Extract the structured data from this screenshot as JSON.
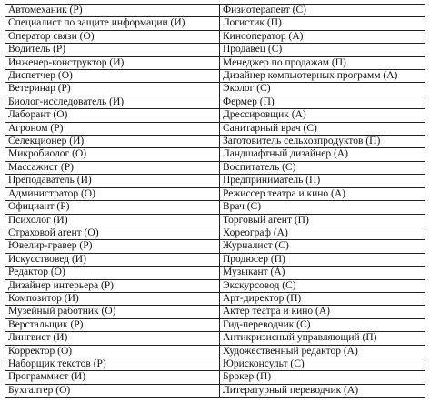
{
  "table": {
    "rows": [
      [
        "Автомеханик (Р)",
        "Физиотерапевт (С)"
      ],
      [
        "Специалист по защите информации (И)",
        "Логистик (П)"
      ],
      [
        "Оператор связи (О)",
        "Кинооператор (А)"
      ],
      [
        "Водитель (Р)",
        "Продавец (С)"
      ],
      [
        "Инженер-конструктор (И)",
        "Менеджер по продажам (П)"
      ],
      [
        "Диспетчер (О)",
        "Дизайнер компьютерных программ (А)"
      ],
      [
        "Ветеринар (Р)",
        "Эколог (С)"
      ],
      [
        "Биолог-исследователь (И)",
        "Фермер (П)"
      ],
      [
        "Лаборант (О)",
        "Дрессировщик (А)"
      ],
      [
        "Агроном (Р)",
        "Санитарный врач (С)"
      ],
      [
        "Селекционер (И)",
        "Заготовитель сельхозпродуктов (П)"
      ],
      [
        "Микробиолог (О)",
        "Ландшафтный дизайнер (А)"
      ],
      [
        "Массажист (Р)",
        "Воспитатель (С)"
      ],
      [
        "Преподаватель (И)",
        "Предприниматель (П)"
      ],
      [
        "Администратор (О)",
        "Режиссер театра и кино (А)"
      ],
      [
        "Официант (Р)",
        "Врач (С)"
      ],
      [
        "Психолог (И)",
        "Торговый агент (П)"
      ],
      [
        "Страховой агент (О)",
        "Хореограф (А)"
      ],
      [
        "Ювелир-гравер (Р)",
        "Журналист (С)"
      ],
      [
        "Искусствовед (И)",
        "Продюсер (П)"
      ],
      [
        "Редактор (О)",
        "Музыкант (А)"
      ],
      [
        "Дизайнер интерьера (Р)",
        "Экскурсовод (С)"
      ],
      [
        "Композитор (И)",
        "Арт-директор (П)"
      ],
      [
        "Музейный работник (О)",
        "Актер театра и кино (А)"
      ],
      [
        "Верстальщик (Р)",
        "Гид-переводчик (С)"
      ],
      [
        "Лингвист (И)",
        "Антикризисный управляющий (П)"
      ],
      [
        "Корректор (О)",
        "Художественный редактор (А)"
      ],
      [
        "Наборщик текстов (Р)",
        "Юрисконсульт (С)"
      ],
      [
        "Программист (И)",
        "Брокер (П)"
      ],
      [
        "Бухгалтер (О)",
        "Литературный переводчик (А)"
      ]
    ]
  }
}
